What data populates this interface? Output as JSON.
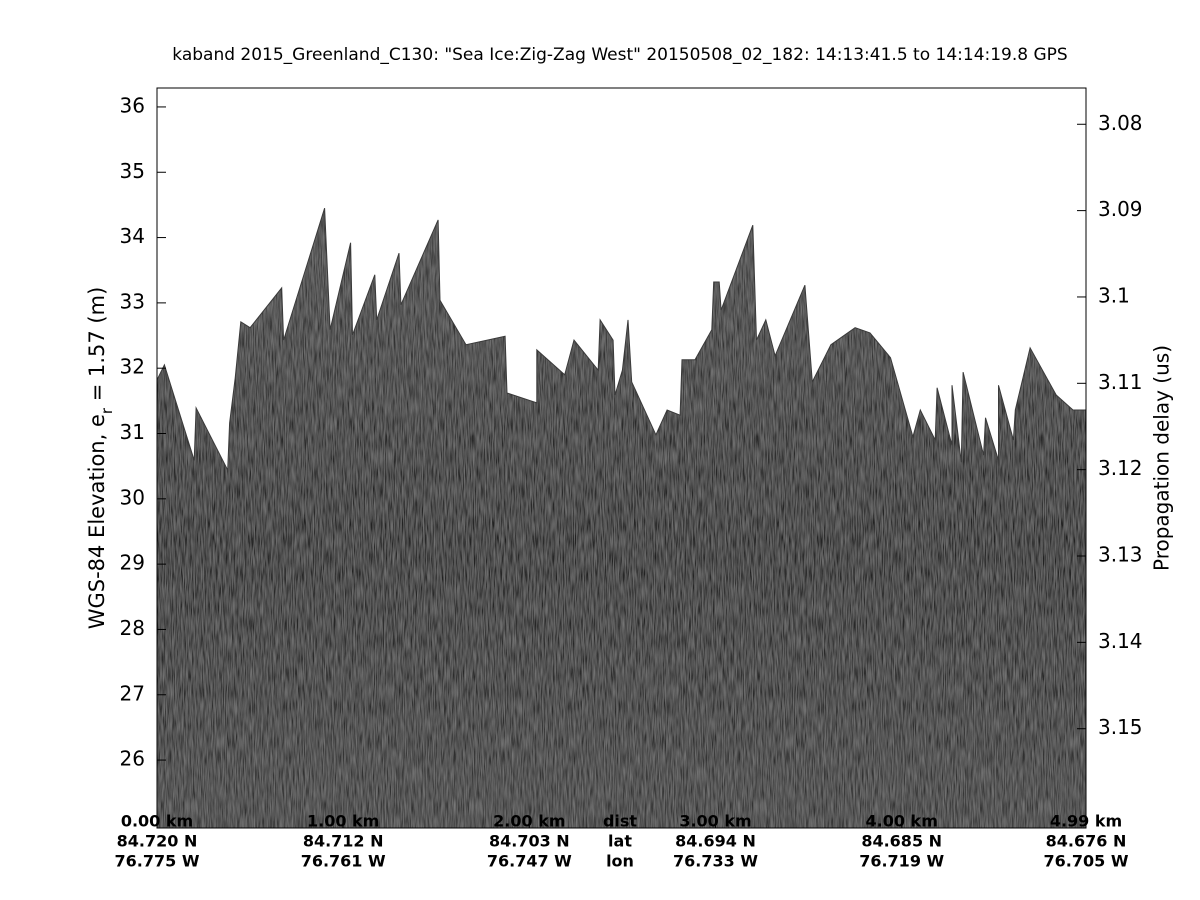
{
  "chart_data": {
    "type": "echogram",
    "title": "kaband 2015_Greenland_C130: \"Sea Ice:Zig-Zag West\"  20150508_02_182: 14:13:41.5 to 14:14:19.8 GPS",
    "ylabel": [
      "WGS-84 Elevation, e",
      "r",
      " = 1.57 (m)"
    ],
    "y2label": "Propagation delay (us)",
    "xlim": [
      0,
      4.99
    ],
    "ylim": [
      24.96,
      36.29
    ],
    "y2lim": [
      3.0758,
      3.1615
    ],
    "yticks": [
      26,
      27,
      28,
      29,
      30,
      31,
      32,
      33,
      34,
      35,
      36
    ],
    "y2ticks": [
      3.08,
      3.09,
      3.1,
      3.11,
      3.12,
      3.13,
      3.14,
      3.15
    ],
    "xtick_row_names": [
      "dist",
      "lat",
      "lon"
    ],
    "xticks": [
      {
        "value": 0,
        "label": "0.00 km"
      },
      {
        "value": 1,
        "label": "1.00 km"
      },
      {
        "value": 2,
        "label": "2.00 km"
      },
      {
        "value": 3,
        "label": "3.00 km"
      },
      {
        "value": 4,
        "label": "4.00 km"
      },
      {
        "value": 4.99,
        "label": "4.99 km"
      }
    ],
    "xtick_lat": [
      "84.720 N",
      "84.712 N",
      "84.703 N",
      "84.694 N",
      "84.685 N",
      "84.676 N"
    ],
    "xtick_lon": [
      "76.775 W",
      "76.761 W",
      "76.747 W",
      "76.733 W",
      "76.719 W",
      "76.705 W"
    ],
    "surface": {
      "x": [
        0.0,
        0.04,
        0.2,
        0.21,
        0.38,
        0.39,
        0.42,
        0.45,
        0.5,
        0.67,
        0.68,
        0.9,
        0.93,
        1.04,
        1.05,
        1.17,
        1.18,
        1.3,
        1.31,
        1.51,
        1.52,
        1.66,
        1.87,
        1.88,
        2.04,
        2.04,
        2.19,
        2.24,
        2.37,
        2.38,
        2.45,
        2.46,
        2.5,
        2.53,
        2.55,
        2.68,
        2.74,
        2.81,
        2.82,
        2.89,
        2.98,
        2.99,
        3.02,
        3.03,
        3.2,
        3.22,
        3.27,
        3.32,
        3.48,
        3.52,
        3.62,
        3.75,
        3.83,
        3.94,
        4.06,
        4.1,
        4.18,
        4.19,
        4.27,
        4.27,
        4.32,
        4.33,
        4.44,
        4.45,
        4.52,
        4.52,
        4.6,
        4.61,
        4.69,
        4.83,
        4.92,
        4.99
      ],
      "values": [
        31.82,
        32.05,
        30.59,
        31.39,
        30.44,
        31.16,
        31.85,
        32.71,
        32.62,
        33.23,
        32.43,
        34.45,
        32.59,
        33.92,
        32.51,
        33.43,
        32.74,
        33.76,
        32.97,
        34.27,
        33.04,
        32.36,
        32.49,
        31.62,
        31.47,
        32.28,
        31.9,
        32.43,
        31.97,
        32.74,
        32.43,
        31.59,
        31.97,
        32.74,
        31.79,
        30.98,
        31.36,
        31.28,
        32.13,
        32.13,
        32.59,
        33.32,
        33.32,
        32.89,
        34.19,
        32.43,
        32.74,
        32.19,
        33.27,
        31.79,
        32.36,
        32.62,
        32.54,
        32.16,
        30.95,
        31.36,
        30.9,
        31.7,
        30.82,
        31.74,
        30.56,
        31.94,
        30.67,
        31.24,
        30.59,
        31.74,
        30.9,
        31.36,
        32.31,
        31.59,
        31.36,
        31.36
      ]
    }
  }
}
